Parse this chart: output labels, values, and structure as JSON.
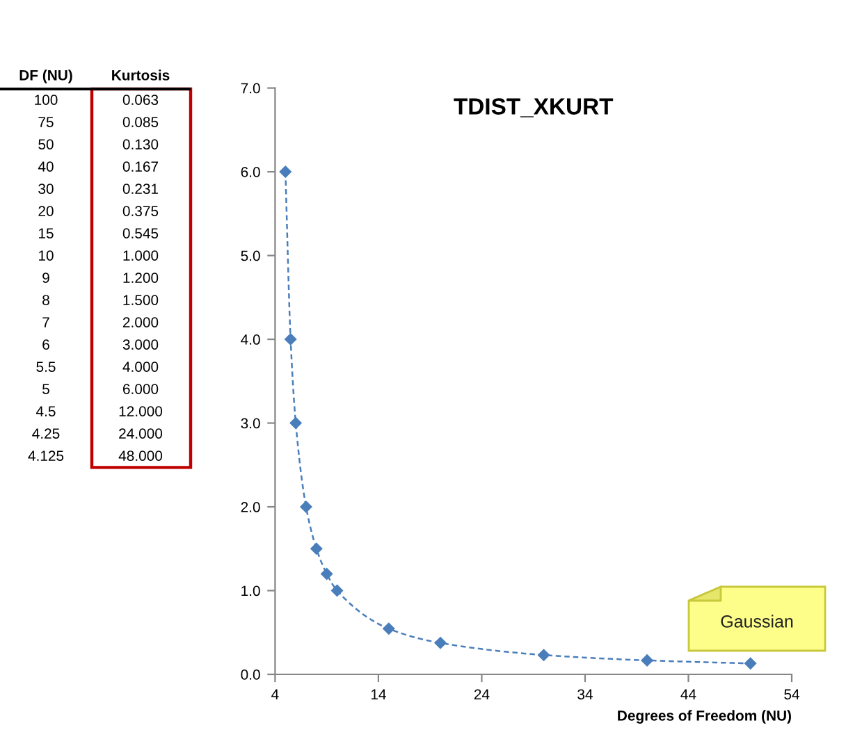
{
  "chart_data": [
    {
      "type": "other",
      "annotations": [
        "DF (NU)",
        "Kurtosis",
        "100",
        "0.063",
        "75",
        "0.085",
        "50",
        "0.130",
        "40",
        "0.167",
        "30",
        "0.231",
        "20",
        "0.375",
        "15",
        "0.545",
        "10",
        "1.000",
        "9",
        "1.200",
        "8",
        "1.500",
        "7",
        "2.000",
        "6",
        "3.000",
        "5.5",
        "4.000",
        "5",
        "6.000",
        "4.5",
        "12.000",
        "4.25",
        "24.000",
        "4.125",
        "48.000"
      ]
    },
    {
      "type": "line",
      "title": "TDIST_XKURT",
      "xlabel": "Degrees of Freedom (NU)",
      "x": [
        5,
        5.5,
        6,
        7,
        8,
        9,
        10,
        15,
        20,
        30,
        40,
        50
      ],
      "series": [
        {
          "color": "#4a7ebb",
          "values": [
            6,
            4,
            3,
            2,
            1.5,
            1.2,
            1.0,
            0.545,
            0.375,
            0.231,
            0.167,
            0.13
          ]
        }
      ],
      "marker": "diamond",
      "line_style": "dashed",
      "xlim": [
        4,
        54
      ],
      "xticks": [
        4,
        14,
        24,
        34,
        44,
        54
      ],
      "ylim": [
        0,
        7
      ],
      "yticks": [
        {
          "value": 0,
          "label": "0.0"
        },
        {
          "value": 1,
          "label": "1.0"
        },
        {
          "value": 2,
          "label": "2.0"
        },
        {
          "value": 3,
          "label": "3.0"
        },
        {
          "value": 4,
          "label": "4.0"
        },
        {
          "value": 5,
          "label": "5.0"
        },
        {
          "value": 6,
          "label": "6.0"
        },
        {
          "value": 7,
          "label": "7.0"
        }
      ],
      "annotations": [
        "Gaussian"
      ]
    }
  ]
}
